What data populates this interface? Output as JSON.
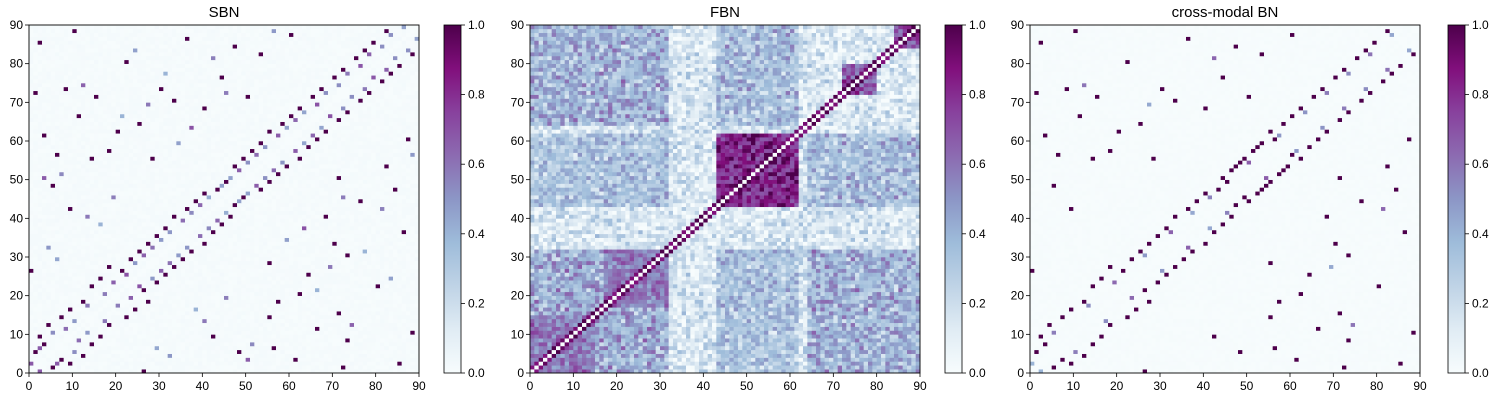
{
  "colormap": {
    "name": "BuPu",
    "stops": [
      "#f7fcfd",
      "#e0ecf4",
      "#bfd3e6",
      "#9ebcda",
      "#8c96c6",
      "#8c6bb1",
      "#88419d",
      "#810f7c",
      "#4d004b"
    ]
  },
  "chart_data": [
    {
      "type": "heatmap",
      "title": "SBN",
      "xlim": [
        0,
        90
      ],
      "ylim": [
        0,
        90
      ],
      "xticks": [
        0,
        10,
        20,
        30,
        40,
        50,
        60,
        70,
        80,
        90
      ],
      "yticks": [
        0,
        10,
        20,
        30,
        40,
        50,
        60,
        70,
        80,
        90
      ],
      "colorbar": {
        "range": [
          0,
          1
        ],
        "ticks": [
          "0.0",
          "0.2",
          "0.4",
          "0.6",
          "0.8",
          "1.0"
        ]
      },
      "grid_size": 90,
      "diagonal": 0,
      "symmetric": true,
      "base_level": 0.02,
      "pattern": "sparse connections concentrated near the diagonal with scattered distant links",
      "strong_edges": [
        [
          1,
          5
        ],
        [
          3,
          7
        ],
        [
          2,
          9
        ],
        [
          4,
          12
        ],
        [
          7,
          14
        ],
        [
          9,
          16
        ],
        [
          12,
          18
        ],
        [
          14,
          22
        ],
        [
          16,
          24
        ],
        [
          18,
          27
        ],
        [
          21,
          26
        ],
        [
          23,
          29
        ],
        [
          25,
          31
        ],
        [
          27,
          33
        ],
        [
          29,
          35
        ],
        [
          31,
          37
        ],
        [
          33,
          40
        ],
        [
          36,
          42
        ],
        [
          38,
          44
        ],
        [
          40,
          46
        ],
        [
          43,
          47
        ],
        [
          45,
          49
        ],
        [
          47,
          53
        ],
        [
          49,
          55
        ],
        [
          51,
          57
        ],
        [
          53,
          59
        ],
        [
          55,
          62
        ],
        [
          58,
          64
        ],
        [
          60,
          66
        ],
        [
          62,
          68
        ],
        [
          65,
          71
        ],
        [
          67,
          73
        ],
        [
          70,
          76
        ],
        [
          72,
          78
        ],
        [
          75,
          81
        ],
        [
          77,
          83
        ],
        [
          79,
          85
        ],
        [
          82,
          88
        ],
        [
          1,
          72
        ],
        [
          3,
          61
        ],
        [
          5,
          48
        ],
        [
          8,
          73
        ],
        [
          11,
          66
        ],
        [
          2,
          85
        ],
        [
          6,
          56
        ],
        [
          20,
          62
        ],
        [
          10,
          88
        ],
        [
          15,
          71
        ],
        [
          25,
          64
        ],
        [
          33,
          70
        ],
        [
          18,
          57
        ],
        [
          22,
          80
        ],
        [
          28,
          55
        ],
        [
          36,
          86
        ],
        [
          44,
          76
        ],
        [
          50,
          71
        ],
        [
          0,
          26
        ],
        [
          47,
          84
        ],
        [
          60,
          87
        ],
        [
          14,
          55
        ],
        [
          40,
          68
        ],
        [
          53,
          82
        ],
        [
          30,
          73
        ],
        [
          9,
          42
        ]
      ],
      "medium_edges": [
        [
          0,
          2
        ],
        [
          2,
          6
        ],
        [
          5,
          10
        ],
        [
          8,
          11
        ],
        [
          10,
          13
        ],
        [
          13,
          17
        ],
        [
          17,
          20
        ],
        [
          19,
          23
        ],
        [
          22,
          25
        ],
        [
          24,
          28
        ],
        [
          26,
          30
        ],
        [
          28,
          32
        ],
        [
          30,
          34
        ],
        [
          32,
          36
        ],
        [
          35,
          39
        ],
        [
          37,
          41
        ],
        [
          39,
          43
        ],
        [
          41,
          45
        ],
        [
          44,
          48
        ],
        [
          46,
          50
        ],
        [
          48,
          52
        ],
        [
          50,
          54
        ],
        [
          52,
          56
        ],
        [
          54,
          58
        ],
        [
          57,
          61
        ],
        [
          59,
          63
        ],
        [
          61,
          65
        ],
        [
          63,
          67
        ],
        [
          66,
          69
        ],
        [
          68,
          72
        ],
        [
          71,
          74
        ],
        [
          73,
          77
        ],
        [
          76,
          79
        ],
        [
          78,
          82
        ],
        [
          81,
          84
        ],
        [
          83,
          87
        ],
        [
          86,
          89
        ],
        [
          4,
          32
        ],
        [
          7,
          51
        ],
        [
          12,
          74
        ],
        [
          19,
          45
        ],
        [
          27,
          69
        ],
        [
          34,
          59
        ],
        [
          42,
          81
        ],
        [
          16,
          38
        ],
        [
          24,
          83
        ],
        [
          3,
          50
        ],
        [
          31,
          77
        ],
        [
          6,
          29
        ],
        [
          37,
          63
        ],
        [
          56,
          88
        ],
        [
          13,
          40
        ],
        [
          21,
          66
        ],
        [
          45,
          72
        ]
      ]
    },
    {
      "type": "heatmap",
      "title": "FBN",
      "xlim": [
        0,
        90
      ],
      "ylim": [
        0,
        90
      ],
      "xticks": [
        0,
        10,
        20,
        30,
        40,
        50,
        60,
        70,
        80,
        90
      ],
      "yticks": [
        0,
        10,
        20,
        30,
        40,
        50,
        60,
        70,
        80,
        90
      ],
      "colorbar": {
        "range": [
          0,
          1
        ],
        "ticks": [
          "0.0",
          "0.2",
          "0.4",
          "0.6",
          "0.8",
          "1.0"
        ]
      },
      "grid_size": 90,
      "diagonal": 0,
      "symmetric": true,
      "base_level": 0.3,
      "pattern": "dense functional connectivity with strong diagonal band and high-correlation blocks",
      "off_diagonal_band": 0.95,
      "blocks": [
        {
          "range": [
            43,
            62
          ],
          "value": 0.9
        },
        {
          "range": [
            0,
            15
          ],
          "value": 0.62
        },
        {
          "range": [
            17,
            32
          ],
          "value": 0.62
        },
        {
          "range": [
            72,
            80
          ],
          "value": 0.78
        },
        {
          "range": [
            84,
            90
          ],
          "value": 0.72
        }
      ],
      "cross_blocks": [
        {
          "rows": [
            0,
            32
          ],
          "cols": [
            0,
            32
          ],
          "value": 0.5
        },
        {
          "rows": [
            43,
            62
          ],
          "cols": [
            0,
            32
          ],
          "value": 0.38
        },
        {
          "rows": [
            43,
            62
          ],
          "cols": [
            64,
            90
          ],
          "value": 0.42
        },
        {
          "rows": [
            0,
            32
          ],
          "cols": [
            64,
            90
          ],
          "value": 0.48
        }
      ]
    },
    {
      "type": "heatmap",
      "title": "cross-modal BN",
      "xlim": [
        0,
        90
      ],
      "ylim": [
        0,
        90
      ],
      "xticks": [
        0,
        10,
        20,
        30,
        40,
        50,
        60,
        70,
        80,
        90
      ],
      "yticks": [
        0,
        10,
        20,
        30,
        40,
        50,
        60,
        70,
        80,
        90
      ],
      "colorbar": {
        "range": [
          0,
          1
        ],
        "ticks": [
          "0.0",
          "0.2",
          "0.4",
          "0.6",
          "0.8",
          "1.0"
        ]
      },
      "grid_size": 90,
      "diagonal": 0,
      "symmetric": true,
      "base_level": 0.01,
      "pattern": "very sparse binary-like connections concentrated near the diagonal",
      "strong_edges": [
        [
          1,
          5
        ],
        [
          3,
          7
        ],
        [
          2,
          9
        ],
        [
          4,
          12
        ],
        [
          7,
          14
        ],
        [
          9,
          16
        ],
        [
          12,
          18
        ],
        [
          14,
          22
        ],
        [
          16,
          24
        ],
        [
          18,
          27
        ],
        [
          21,
          26
        ],
        [
          23,
          29
        ],
        [
          25,
          31
        ],
        [
          27,
          33
        ],
        [
          29,
          35
        ],
        [
          31,
          37
        ],
        [
          33,
          40
        ],
        [
          36,
          42
        ],
        [
          38,
          44
        ],
        [
          40,
          46
        ],
        [
          43,
          47
        ],
        [
          45,
          49
        ],
        [
          47,
          53
        ],
        [
          49,
          55
        ],
        [
          51,
          57
        ],
        [
          53,
          59
        ],
        [
          55,
          62
        ],
        [
          58,
          64
        ],
        [
          60,
          66
        ],
        [
          62,
          68
        ],
        [
          65,
          71
        ],
        [
          67,
          73
        ],
        [
          70,
          76
        ],
        [
          72,
          78
        ],
        [
          75,
          81
        ],
        [
          77,
          83
        ],
        [
          79,
          85
        ],
        [
          82,
          88
        ],
        [
          1,
          72
        ],
        [
          3,
          61
        ],
        [
          5,
          48
        ],
        [
          8,
          73
        ],
        [
          11,
          66
        ],
        [
          2,
          85
        ],
        [
          6,
          56
        ],
        [
          20,
          62
        ],
        [
          10,
          88
        ],
        [
          15,
          71
        ],
        [
          25,
          64
        ],
        [
          33,
          70
        ],
        [
          18,
          57
        ],
        [
          22,
          80
        ],
        [
          28,
          55
        ],
        [
          36,
          86
        ],
        [
          44,
          76
        ],
        [
          50,
          71
        ],
        [
          0,
          26
        ],
        [
          47,
          84
        ],
        [
          60,
          87
        ],
        [
          14,
          55
        ],
        [
          40,
          68
        ],
        [
          53,
          82
        ],
        [
          30,
          73
        ],
        [
          9,
          42
        ],
        [
          44,
          50
        ],
        [
          46,
          52
        ],
        [
          48,
          54
        ],
        [
          52,
          58
        ],
        [
          56,
          60
        ]
      ],
      "medium_edges": [
        [
          0,
          2
        ],
        [
          5,
          10
        ],
        [
          13,
          17
        ],
        [
          19,
          23
        ],
        [
          26,
          30
        ],
        [
          32,
          36
        ],
        [
          37,
          41
        ],
        [
          41,
          45
        ],
        [
          50,
          54
        ],
        [
          57,
          61
        ],
        [
          63,
          67
        ],
        [
          68,
          72
        ],
        [
          73,
          77
        ],
        [
          78,
          82
        ],
        [
          83,
          87
        ],
        [
          12,
          74
        ],
        [
          27,
          69
        ],
        [
          42,
          81
        ]
      ]
    }
  ]
}
